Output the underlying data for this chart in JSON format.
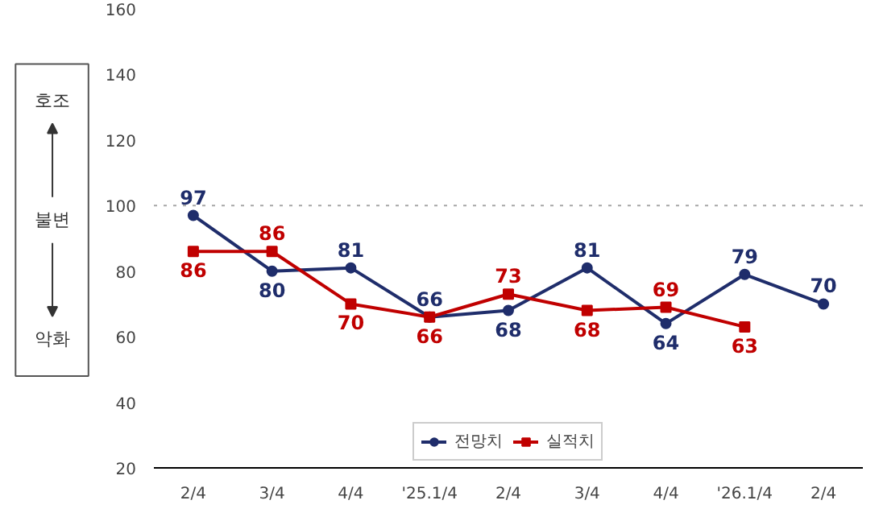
{
  "chart_data": {
    "type": "line",
    "categories": [
      "2/4",
      "3/4",
      "4/4",
      "'25.1/4",
      "2/4",
      "3/4",
      "4/4",
      "'26.1/4",
      "2/4"
    ],
    "series": [
      {
        "name": "전망치",
        "color": "#1f2d6b",
        "marker": "circle",
        "values": [
          97,
          80,
          81,
          66,
          68,
          81,
          64,
          79,
          70
        ]
      },
      {
        "name": "실적치",
        "color": "#c00000",
        "marker": "square",
        "values": [
          86,
          86,
          70,
          66,
          73,
          68,
          69,
          63,
          null
        ]
      }
    ],
    "ylim": [
      20,
      160
    ],
    "yticks": [
      20,
      40,
      60,
      80,
      100,
      120,
      140,
      160
    ],
    "grid": false,
    "legend": "bottom",
    "data_labels": true,
    "ref_lines": [
      {
        "axis": "y",
        "value": 100,
        "color": "#a6a6a6",
        "line_style": "dotted"
      }
    ],
    "annotations": [
      "호조",
      "불변",
      "악화"
    ]
  }
}
